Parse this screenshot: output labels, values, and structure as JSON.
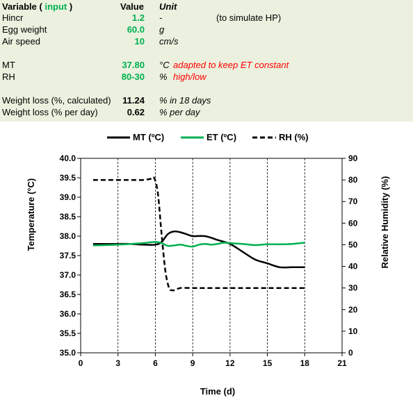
{
  "table": {
    "header": {
      "variable": "Variable",
      "paren_open": "(",
      "input": "input",
      "paren_close": ")",
      "value": "Value",
      "unit": "Unit"
    },
    "rows": [
      {
        "label": "Hincr",
        "value": "1.2",
        "unit": "-",
        "note": "(to simulate HP)",
        "value_style": "green"
      },
      {
        "label": "Egg weight",
        "value": "60.0",
        "unit": "g",
        "note": "",
        "value_style": "green"
      },
      {
        "label": "Air speed",
        "value": "10",
        "unit": "cm/s",
        "note": "",
        "value_style": "green"
      },
      {
        "label": "MT",
        "value": "37.80",
        "unit": "°C",
        "note": "adapted to keep ET constant",
        "value_style": "green"
      },
      {
        "label": "RH",
        "value": "80-30",
        "unit": "%",
        "note": "high/low",
        "value_style": "green"
      },
      {
        "label": "Weight loss (%, calculated)",
        "value": "11.24",
        "unit": "% in 18 days",
        "note": "",
        "value_style": "bold"
      },
      {
        "label": "Weight loss (% per day)",
        "value": "0.62",
        "unit": "% per day",
        "note": "",
        "value_style": "bold"
      }
    ]
  },
  "chart_data": {
    "type": "line",
    "xlabel": "Time (d)",
    "ylabel": "Temperature (°C)",
    "y2label": "Relative Humidity (%)",
    "xlim": [
      0,
      21
    ],
    "ylim": [
      35.0,
      40.0
    ],
    "y2lim": [
      0,
      90
    ],
    "xticks": [
      "0",
      "3",
      "6",
      "9",
      "12",
      "15",
      "18",
      "21"
    ],
    "yticks": [
      "35.0",
      "35.5",
      "36.0",
      "36.5",
      "37.0",
      "37.5",
      "38.0",
      "38.5",
      "39.0",
      "39.5",
      "40.0"
    ],
    "y2ticks": [
      "0",
      "10",
      "20",
      "30",
      "40",
      "50",
      "60",
      "70",
      "80",
      "90"
    ],
    "grid": "vertical",
    "legend_position": "top",
    "series": [
      {
        "name": "MT (ºC)",
        "axis": "left",
        "color": "#000000",
        "dash": "solid",
        "x": [
          1,
          2,
          3,
          4,
          5,
          6,
          6.5,
          7,
          7.5,
          8,
          8.5,
          9,
          10,
          11,
          12,
          13,
          14,
          15,
          16,
          17,
          18
        ],
        "y": [
          37.8,
          37.8,
          37.8,
          37.8,
          37.78,
          37.78,
          37.85,
          38.05,
          38.12,
          38.1,
          38.05,
          38.0,
          38.0,
          37.9,
          37.8,
          37.6,
          37.4,
          37.3,
          37.2,
          37.2,
          37.2
        ]
      },
      {
        "name": "ET (ºC)",
        "axis": "left",
        "color": "#00b050",
        "dash": "solid",
        "x": [
          1,
          2,
          3,
          4,
          5,
          6,
          6.5,
          7,
          7.5,
          8,
          8.5,
          9,
          9.5,
          10,
          10.5,
          11,
          11.5,
          12,
          13,
          14,
          15,
          16,
          17,
          18
        ],
        "y": [
          37.76,
          37.77,
          37.78,
          37.8,
          37.82,
          37.85,
          37.82,
          37.75,
          37.76,
          37.78,
          37.75,
          37.73,
          37.78,
          37.8,
          37.78,
          37.8,
          37.83,
          37.82,
          37.8,
          37.77,
          37.79,
          37.79,
          37.8,
          37.83
        ]
      },
      {
        "name": "RH (%)",
        "axis": "right",
        "color": "#000000",
        "dash": "dashed",
        "x": [
          1,
          2,
          3,
          4,
          5,
          5.6,
          5.9,
          6.2,
          6.5,
          6.8,
          7.1,
          7.3,
          7.6,
          8,
          9,
          10,
          12,
          15,
          18
        ],
        "y": [
          80,
          80,
          80,
          80,
          80,
          80.5,
          81,
          74,
          55,
          38,
          30,
          29,
          29,
          30,
          30,
          30,
          30,
          30,
          30
        ]
      }
    ]
  }
}
